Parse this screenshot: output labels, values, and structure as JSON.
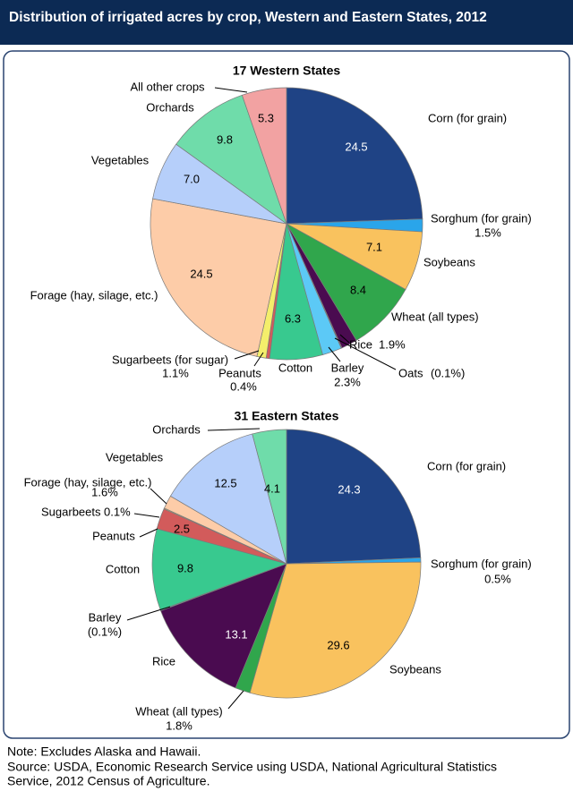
{
  "title": "Distribution of irrigated acres by crop, Western and Eastern States, 2012",
  "notes": [
    "Note: Excludes Alaska and Hawaii.",
    "Source: USDA, Economic Research Service using USDA, National Agricultural Statistics",
    "Service, 2012 Census of Agriculture."
  ],
  "chart_data": [
    {
      "type": "pie",
      "title": "17 Western States",
      "categories": [
        "Corn (for grain)",
        "Sorghum (for grain)",
        "Soybeans",
        "Wheat (all types)",
        "Rice",
        "Oats",
        "Barley",
        "Cotton",
        "Peanuts",
        "Sugarbeets (for sugar)",
        "Forage (hay, silage, etc.)",
        "Vegetables",
        "Orchards",
        "All other crops"
      ],
      "values": [
        24.5,
        1.5,
        7.1,
        8.4,
        1.9,
        0.1,
        2.3,
        6.3,
        0.4,
        1.1,
        24.5,
        7.0,
        9.8,
        5.3
      ],
      "value_labels": [
        null,
        "1.5%",
        null,
        null,
        "1.9%",
        "(0.1%)",
        "2.3%",
        null,
        "0.4%",
        "1.1%",
        null,
        "7.0",
        null,
        null
      ],
      "colors": [
        "#1f4385",
        "#2aa5ea",
        "#f9c25e",
        "#30a64c",
        "#4a0b50",
        "#8b2846",
        "#5cc9f6",
        "#38c98f",
        "#d25b5b",
        "#f4ee6b",
        "#fdcca8",
        "#b6cffa",
        "#6fdcaa",
        "#f2a2a2"
      ]
    },
    {
      "type": "pie",
      "title": "31 Eastern States",
      "categories": [
        "Corn (for grain)",
        "Sorghum (for grain)",
        "Soybeans",
        "Wheat (all types)",
        "Rice",
        "Barley",
        "Cotton",
        "Peanuts",
        "Sugarbeets",
        "Forage (hay, silage, etc.)",
        "Vegetables",
        "Orchards"
      ],
      "values": [
        24.3,
        0.5,
        29.6,
        1.8,
        13.1,
        0.1,
        9.8,
        2.5,
        0.1,
        1.6,
        12.5,
        4.1
      ],
      "value_labels": [
        null,
        "0.5%",
        null,
        "1.8%",
        null,
        "(0.1%)",
        null,
        null,
        "0.1%",
        "1.6%",
        null,
        null
      ],
      "colors": [
        "#1f4385",
        "#2aa5ea",
        "#f9c25e",
        "#30a64c",
        "#4a0b50",
        "#5cc9f6",
        "#38c98f",
        "#d25b5b",
        "#f4ee6b",
        "#fdcca8",
        "#b6cffa",
        "#6fdcaa"
      ]
    }
  ]
}
